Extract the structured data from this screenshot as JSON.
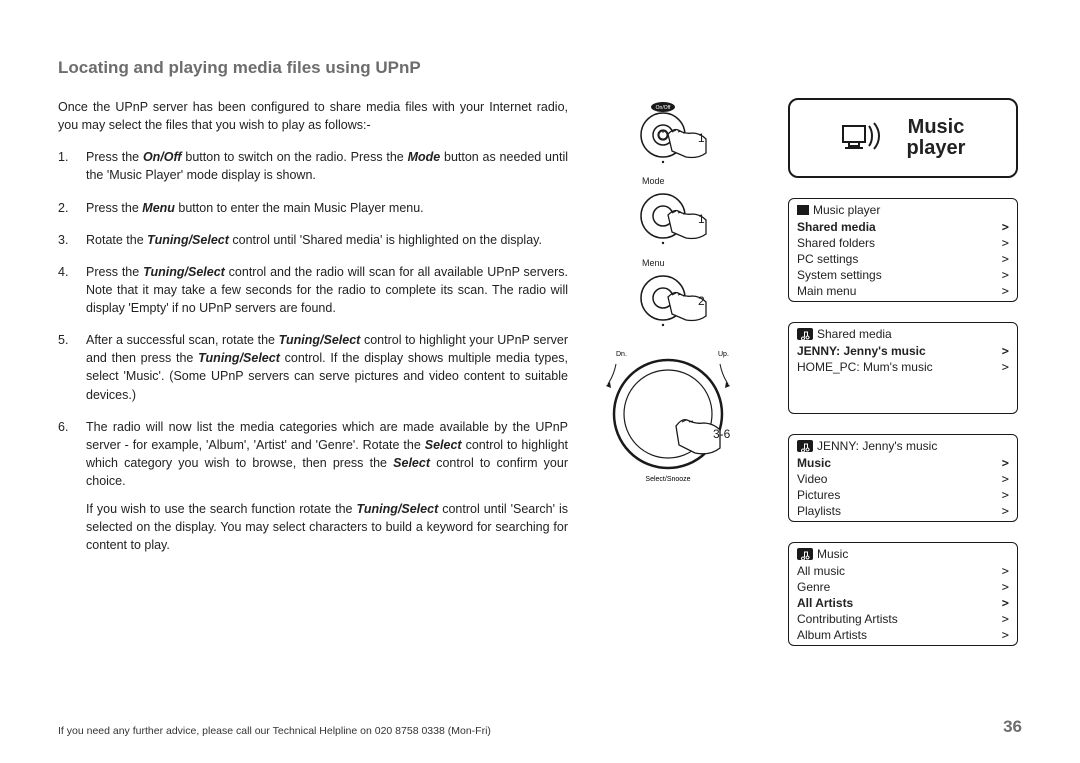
{
  "title": "Locating and playing media files using UPnP",
  "intro": "Once the UPnP server has been configured to share media files with your Internet radio, you may select the files that you wish to play as follows:-",
  "steps": [
    {
      "n": "1.",
      "pre": "Press the ",
      "b1": "On/Off",
      "mid1": " button to switch on the radio. Press the ",
      "b2": "Mode",
      "post": " button as needed until the 'Music Player' mode display is shown."
    },
    {
      "n": "2.",
      "pre": "Press the ",
      "b1": "Menu",
      "post": " button to enter the main Music Player menu."
    },
    {
      "n": "3.",
      "pre": "Rotate the ",
      "b1": "Tuning/Select",
      "post": " control until 'Shared media' is highlighted on the display."
    },
    {
      "n": "4.",
      "pre": "Press the ",
      "b1": "Tuning/Select",
      "post": " control and the radio will scan for all available UPnP servers. Note that it may take a few seconds for the radio to complete its scan. The radio will display 'Empty' if no UPnP servers are found."
    },
    {
      "n": "5.",
      "pre": "After a successful scan, rotate the ",
      "b1": "Tuning/Select",
      "mid1": " control to highlight your UPnP server and then press the ",
      "b2": "Tuning/Select",
      "post": " control. If the display shows multiple media types, select 'Music'. (Some UPnP servers can serve pictures and video content to suitable devices.)"
    },
    {
      "n": "6.",
      "pre": "The radio will now list the media categories which are made available by the UPnP server - for example, 'Album', 'Artist' and 'Genre'. Rotate the ",
      "b1": "Select",
      "mid1": " control to highlight which category you wish to browse, then press the ",
      "b2": "Select",
      "post": " control to confirm your choice.",
      "sub_pre": "If you wish to use the search function rotate the ",
      "sub_b": "Tuning/Select",
      "sub_post": " control until 'Search' is selected on the display. You may select characters to build a keyword for searching for content to play."
    }
  ],
  "controls": {
    "onoff": {
      "label": "On/Off",
      "step": "1"
    },
    "mode": {
      "label": "Mode",
      "step": "1"
    },
    "menu": {
      "label": "Menu",
      "step": "2"
    },
    "dial": {
      "dn": "Dn.",
      "up": "Up.",
      "bottom": "Select/Snooze",
      "step": "3-6"
    }
  },
  "lcd_main": {
    "l1": "Music",
    "l2": "player"
  },
  "menus": [
    {
      "header": "Music player",
      "header_icon": "square",
      "rows": [
        {
          "t": "Shared media",
          "sel": true
        },
        {
          "t": "Shared folders"
        },
        {
          "t": "PC settings"
        },
        {
          "t": "System settings"
        },
        {
          "t": "Main menu"
        }
      ]
    },
    {
      "header": "Shared media",
      "header_icon": "note",
      "tall": true,
      "rows": [
        {
          "t": "JENNY: Jenny's music",
          "sel": true
        },
        {
          "t": "HOME_PC: Mum's music"
        }
      ]
    },
    {
      "header": "JENNY: Jenny's music",
      "header_icon": "note",
      "rows": [
        {
          "t": "Music",
          "sel": true
        },
        {
          "t": "Video"
        },
        {
          "t": "Pictures"
        },
        {
          "t": "Playlists"
        }
      ]
    },
    {
      "header": "Music",
      "header_icon": "note",
      "rows": [
        {
          "t": "All music"
        },
        {
          "t": "Genre"
        },
        {
          "t": "All Artists",
          "sel": true
        },
        {
          "t": "Contributing Artists"
        },
        {
          "t": "Album Artists"
        }
      ]
    }
  ],
  "footer_text": "If you need any further advice, please call our Technical Helpline on 020 8758 0338 (Mon-Fri)",
  "page_num": "36"
}
